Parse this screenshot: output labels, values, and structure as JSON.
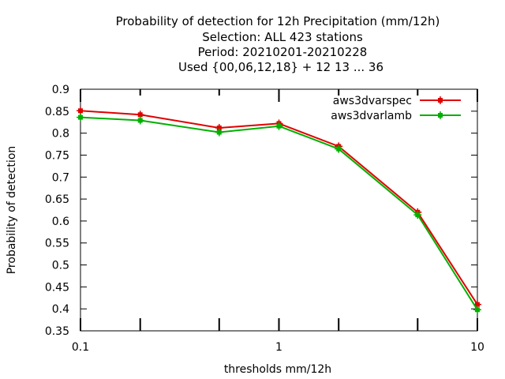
{
  "chart_data": {
    "type": "line",
    "title_lines": [
      "Probability of detection  for 12h Precipitation (mm/12h)",
      "Selection: ALL    423 stations",
      "Period: 20210201-20210228",
      "Used {00,06,12,18} + 12 13 ... 36"
    ],
    "xlabel": "thresholds mm/12h",
    "ylabel": "Probability of detection",
    "x_scale": "log",
    "xlim": [
      0.1,
      10
    ],
    "ylim": [
      0.35,
      0.9
    ],
    "x_ticks": [
      0.1,
      1,
      10
    ],
    "x_tick_labels": [
      "0.1",
      "1",
      "10"
    ],
    "x_minor_ticks": [
      0.2,
      0.5,
      2,
      5
    ],
    "y_ticks": [
      0.35,
      0.4,
      0.45,
      0.5,
      0.55,
      0.6,
      0.65,
      0.7,
      0.75,
      0.8,
      0.85,
      0.9
    ],
    "y_tick_labels": [
      "0.35",
      "0.4",
      "0.45",
      "0.5",
      "0.55",
      "0.6",
      "0.65",
      "0.7",
      "0.75",
      "0.8",
      "0.85",
      "0.9"
    ],
    "grid": false,
    "legend_position": "top-right",
    "series": [
      {
        "name": "aws3dvarspec",
        "color": "#e00000",
        "x": [
          0.1,
          0.2,
          0.5,
          1,
          2,
          5,
          10
        ],
        "y": [
          0.851,
          0.842,
          0.812,
          0.822,
          0.77,
          0.62,
          0.41
        ]
      },
      {
        "name": "aws3dvarlamb",
        "color": "#00b000",
        "x": [
          0.1,
          0.2,
          0.5,
          1,
          2,
          5,
          10
        ],
        "y": [
          0.836,
          0.829,
          0.802,
          0.816,
          0.764,
          0.614,
          0.398
        ]
      }
    ]
  }
}
